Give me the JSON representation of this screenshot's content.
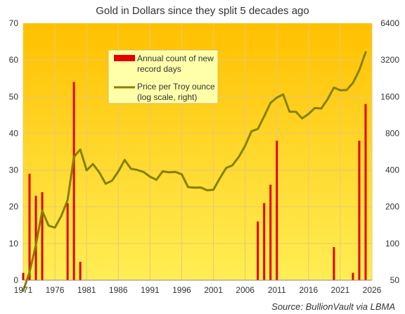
{
  "chart_data": {
    "type": "bar+line",
    "title": "Gold in Dollars since they split 5 decades ago",
    "background": "#ffd83a",
    "grid": true,
    "legend": {
      "placement": "top-center",
      "bar_label_line1": "Annual count of new",
      "bar_label_line2": "record days",
      "line_label_line1": "Price per Troy ounce",
      "line_label_line2": "(log scale, right)"
    },
    "colors": {
      "bar": "#e40000",
      "line": "#858000"
    },
    "x_ticks": [
      "1971",
      "1976",
      "1981",
      "1986",
      "1991",
      "1996",
      "2001",
      "2006",
      "2011",
      "2016",
      "2021",
      "2026"
    ],
    "x_range": [
      1971,
      2026
    ],
    "left_axis": {
      "ylim": [
        0,
        70
      ],
      "ticks": [
        "0",
        "10",
        "20",
        "30",
        "40",
        "50",
        "60",
        "70"
      ]
    },
    "right_axis": {
      "scale": "log",
      "ylim": [
        50,
        6400
      ],
      "ticks": [
        "50",
        "100",
        "200",
        "400",
        "800",
        "1600",
        "3200",
        "6400"
      ]
    },
    "bars": {
      "name": "Annual count of new record days",
      "points": [
        {
          "x": 1971,
          "y": 2
        },
        {
          "x": 1972,
          "y": 29
        },
        {
          "x": 1973,
          "y": 23
        },
        {
          "x": 1974,
          "y": 24
        },
        {
          "x": 1978,
          "y": 21
        },
        {
          "x": 1979,
          "y": 54
        },
        {
          "x": 1980,
          "y": 5
        },
        {
          "x": 2008,
          "y": 16
        },
        {
          "x": 2009,
          "y": 21
        },
        {
          "x": 2010,
          "y": 26
        },
        {
          "x": 2011,
          "y": 38
        },
        {
          "x": 2020,
          "y": 9
        },
        {
          "x": 2023,
          "y": 2
        },
        {
          "x": 2024,
          "y": 38
        },
        {
          "x": 2025,
          "y": 48
        }
      ]
    },
    "line": {
      "name": "Price per Troy ounce",
      "points": [
        {
          "x": 1971,
          "y": 41
        },
        {
          "x": 1972,
          "y": 58
        },
        {
          "x": 1973,
          "y": 97
        },
        {
          "x": 1974,
          "y": 186
        },
        {
          "x": 1975,
          "y": 140
        },
        {
          "x": 1976,
          "y": 135
        },
        {
          "x": 1977,
          "y": 168
        },
        {
          "x": 1978,
          "y": 226
        },
        {
          "x": 1979,
          "y": 512
        },
        {
          "x": 1980,
          "y": 590
        },
        {
          "x": 1981,
          "y": 398
        },
        {
          "x": 1982,
          "y": 448
        },
        {
          "x": 1983,
          "y": 383
        },
        {
          "x": 1984,
          "y": 309
        },
        {
          "x": 1985,
          "y": 327
        },
        {
          "x": 1986,
          "y": 390
        },
        {
          "x": 1987,
          "y": 484
        },
        {
          "x": 1988,
          "y": 410
        },
        {
          "x": 1989,
          "y": 401
        },
        {
          "x": 1990,
          "y": 386
        },
        {
          "x": 1991,
          "y": 353
        },
        {
          "x": 1992,
          "y": 333
        },
        {
          "x": 1993,
          "y": 391
        },
        {
          "x": 1994,
          "y": 383
        },
        {
          "x": 1995,
          "y": 387
        },
        {
          "x": 1996,
          "y": 369
        },
        {
          "x": 1997,
          "y": 290
        },
        {
          "x": 1998,
          "y": 287
        },
        {
          "x": 1999,
          "y": 288
        },
        {
          "x": 2000,
          "y": 273
        },
        {
          "x": 2001,
          "y": 276
        },
        {
          "x": 2002,
          "y": 342
        },
        {
          "x": 2003,
          "y": 416
        },
        {
          "x": 2004,
          "y": 438
        },
        {
          "x": 2005,
          "y": 513
        },
        {
          "x": 2006,
          "y": 632
        },
        {
          "x": 2007,
          "y": 833
        },
        {
          "x": 2008,
          "y": 869
        },
        {
          "x": 2009,
          "y": 1104
        },
        {
          "x": 2010,
          "y": 1421
        },
        {
          "x": 2011,
          "y": 1572
        },
        {
          "x": 2012,
          "y": 1669
        },
        {
          "x": 2013,
          "y": 1205
        },
        {
          "x": 2014,
          "y": 1203
        },
        {
          "x": 2015,
          "y": 1061
        },
        {
          "x": 2016,
          "y": 1153
        },
        {
          "x": 2017,
          "y": 1291
        },
        {
          "x": 2018,
          "y": 1279
        },
        {
          "x": 2019,
          "y": 1523
        },
        {
          "x": 2020,
          "y": 1898
        },
        {
          "x": 2021,
          "y": 1806
        },
        {
          "x": 2022,
          "y": 1813
        },
        {
          "x": 2023,
          "y": 2070
        },
        {
          "x": 2024,
          "y": 2640
        },
        {
          "x": 2025,
          "y": 3700
        }
      ]
    },
    "source": "Source: BullionVault via LBMA"
  }
}
